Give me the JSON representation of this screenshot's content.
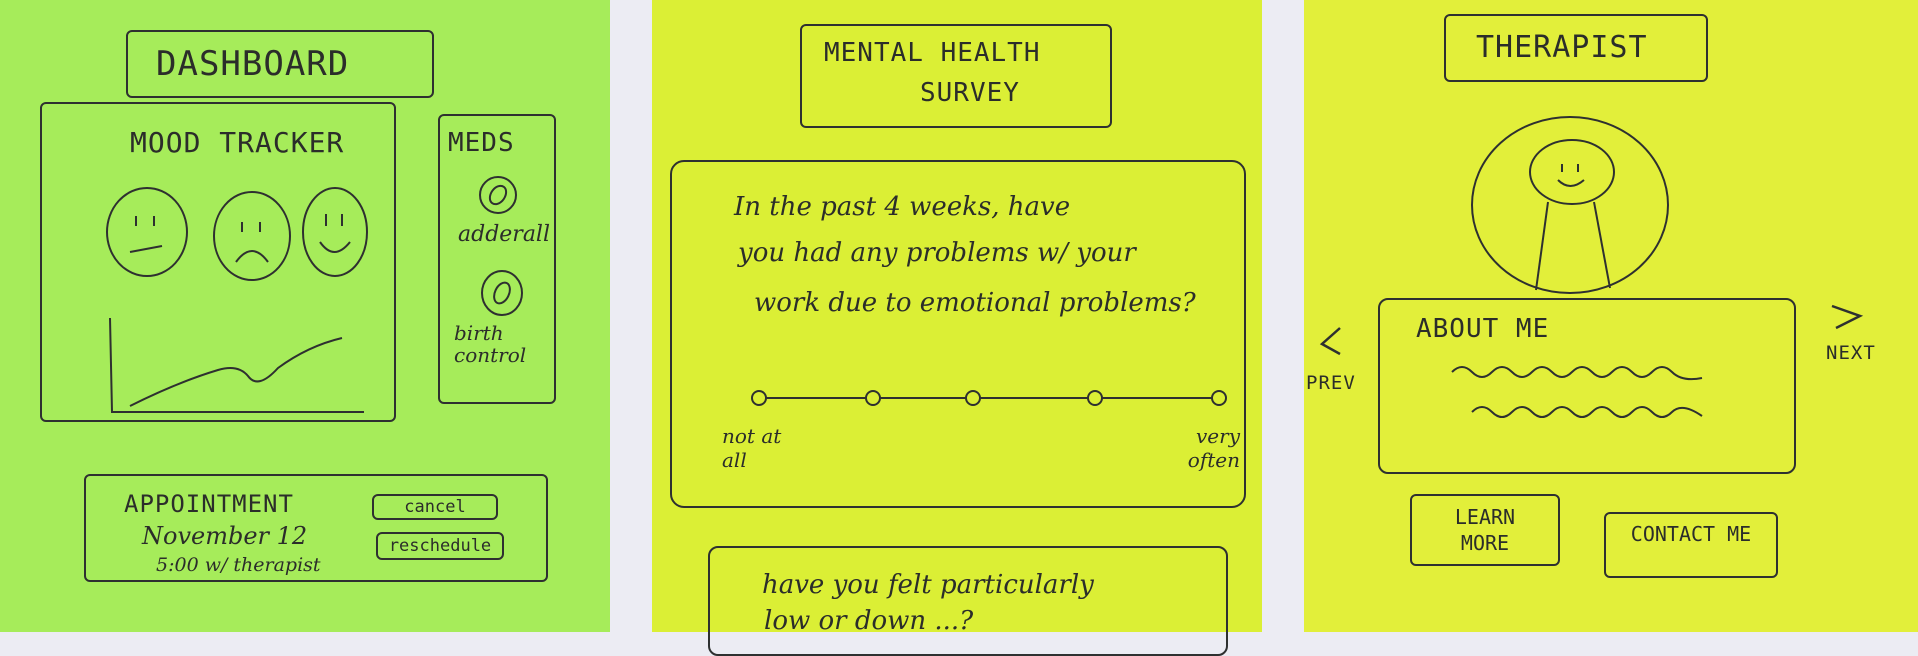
{
  "dashboard": {
    "title": "DASHBOARD",
    "mood_tracker": {
      "heading": "MOOD TRACKER",
      "faces": [
        "neutral-face-icon",
        "sad-face-icon",
        "happy-face-icon"
      ]
    },
    "meds": {
      "heading": "MEDS",
      "items": [
        {
          "label": "adderall",
          "icon": "pill-icon"
        },
        {
          "label": "birth control",
          "icon": "pill-icon"
        }
      ]
    },
    "appointment": {
      "heading": "APPOINTMENT",
      "date": "November 12",
      "detail": "5:00 w/ therapist",
      "cancel_label": "cancel",
      "reschedule_label": "reschedule"
    }
  },
  "survey": {
    "title_line1": "MENTAL HEALTH",
    "title_line2": "SURVEY",
    "question1": {
      "line1": "In the past 4 weeks, have",
      "line2": "you had any problems w/ your",
      "line3": "work due to emotional problems?",
      "scale_min": "not at all",
      "scale_max": "very often",
      "scale_points": 5
    },
    "question2": {
      "line1": "have you felt particularly",
      "line2": "low or down ...?"
    }
  },
  "therapist": {
    "title": "THERAPIST",
    "about_heading": "ABOUT ME",
    "prev_label": "PREV",
    "next_label": "NEXT",
    "learn_more_label": "LEARN MORE",
    "contact_label": "CONTACT ME"
  },
  "colors": {
    "note_green": "#a6ec5a",
    "note_yellow": "#dbef35",
    "ink": "#2b2d2a"
  }
}
